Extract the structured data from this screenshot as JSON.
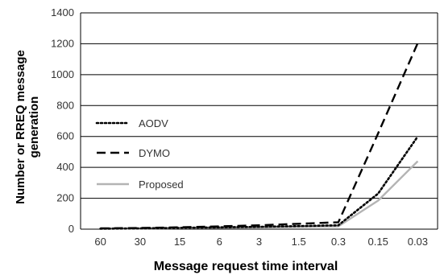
{
  "chart_data": {
    "type": "line",
    "title": "",
    "xlabel": "Message request time interval",
    "ylabel_lines": [
      "Number or RREQ message",
      "generation"
    ],
    "categories": [
      "60",
      "30",
      "15",
      "6",
      "3",
      "1.5",
      "0.3",
      "0.15",
      "0.03"
    ],
    "ylim": [
      0,
      1400
    ],
    "yticks": [
      0,
      200,
      400,
      600,
      800,
      1000,
      1200,
      1400
    ],
    "grid": "horizontal",
    "legend_position": "left-middle",
    "series": [
      {
        "name": "AODV",
        "style": "dotted",
        "color": "#000000",
        "values": [
          3,
          5,
          8,
          12,
          15,
          20,
          25,
          230,
          600
        ]
      },
      {
        "name": "DYMO",
        "style": "dashed",
        "color": "#000000",
        "values": [
          5,
          8,
          12,
          18,
          25,
          35,
          45,
          620,
          1205
        ]
      },
      {
        "name": "Proposed",
        "style": "solid",
        "color": "#b4b4b4",
        "values": [
          2,
          4,
          6,
          9,
          12,
          15,
          18,
          185,
          440
        ]
      }
    ]
  }
}
